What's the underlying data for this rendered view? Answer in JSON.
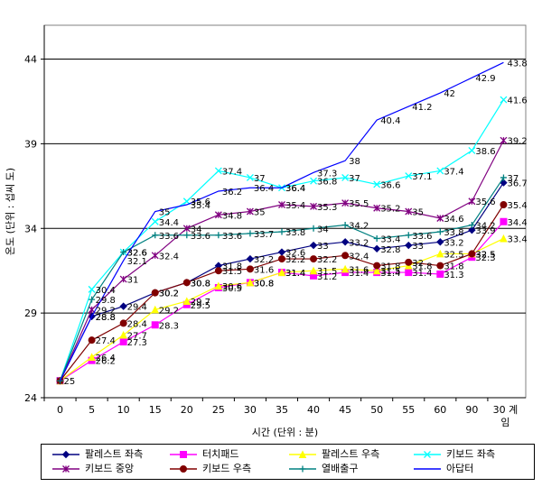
{
  "chart_data": {
    "type": "line",
    "title": "",
    "ylabel": "온도 (단위 : 섭씨 도)",
    "xlabel": "시간 (단위 : 분)",
    "categories": [
      "0",
      "5",
      "10",
      "15",
      "20",
      "25",
      "30",
      "35",
      "40",
      "45",
      "50",
      "55",
      "60",
      "90",
      "30 계임"
    ],
    "y_ticks": [
      "24",
      "29",
      "34",
      "39",
      "44"
    ],
    "ylim": [
      24,
      46
    ],
    "grid": "horizontal major lines",
    "legend_position": "bottom",
    "series": [
      {
        "name": "팔레스트 좌측",
        "color": "#000080",
        "marker": "diamond",
        "values": [
          25,
          28.8,
          29.4,
          30.2,
          30.8,
          31.8,
          32.2,
          32.6,
          33,
          33.2,
          32.8,
          33,
          33.2,
          33.9,
          36.7
        ]
      },
      {
        "name": "터치패드",
        "color": "#ff00ff",
        "marker": "square",
        "values": [
          25,
          26.2,
          27.3,
          28.3,
          29.5,
          30.5,
          30.8,
          31.4,
          31.2,
          31.4,
          31.4,
          31.4,
          31.3,
          32.3,
          34.4
        ]
      },
      {
        "name": "팔레스트 우측",
        "color": "#ffff00",
        "marker": "triangle",
        "values": [
          25,
          26.4,
          27.7,
          29.2,
          29.7,
          30.6,
          30.8,
          31.4,
          31.5,
          31.6,
          31.5,
          31.8,
          32.5,
          32.5,
          33.4
        ]
      },
      {
        "name": "키보드 좌측",
        "color": "#00ffff",
        "marker": "x",
        "values": [
          25,
          30.4,
          32.6,
          34.4,
          35.6,
          37.4,
          37,
          36.4,
          36.8,
          37,
          36.6,
          37.1,
          37.4,
          38.6,
          41.6
        ]
      },
      {
        "name": "키보드 중앙",
        "color": "#800080",
        "marker": "star",
        "values": [
          25,
          29.2,
          31,
          32.4,
          34,
          34.8,
          35,
          35.4,
          35.3,
          35.5,
          35.2,
          35,
          34.6,
          35.6,
          39.2
        ]
      },
      {
        "name": "키보드 우측",
        "color": "#800000",
        "marker": "circle",
        "values": [
          25,
          27.4,
          28.4,
          30.2,
          30.8,
          31.5,
          31.6,
          32.2,
          32.2,
          32.4,
          31.8,
          32,
          31.8,
          32.5,
          35.4
        ]
      },
      {
        "name": "열배출구",
        "color": "#008080",
        "marker": "plus",
        "values": [
          25,
          29.8,
          32.6,
          33.6,
          33.6,
          33.6,
          33.7,
          33.8,
          34,
          34.2,
          33.4,
          33.6,
          33.8,
          34.2,
          37
        ]
      },
      {
        "name": "아답터",
        "color": "#0000ff",
        "marker": "none",
        "values": [
          25,
          28.8,
          32.1,
          35,
          35.4,
          36.2,
          36.4,
          36.4,
          37.3,
          38,
          40.4,
          41.2,
          42,
          42.9,
          43.8
        ]
      }
    ],
    "value_labels": [
      [
        "25",
        "28.8",
        "29.4",
        "30.2",
        "30.8",
        "31.8",
        "32.2",
        "32.6",
        "33",
        "33.2",
        "32.8",
        "33",
        "33.2",
        "33.9",
        "36.7"
      ],
      [
        "",
        "26.2",
        "27.3",
        "28.3",
        "29.5",
        "30.5",
        "30.8",
        "31.4",
        "31.2",
        "31.4",
        "31.4",
        "31.4",
        "31.3",
        "32.3",
        "34.4"
      ],
      [
        "",
        "26.4",
        "27.7",
        "29.2",
        "29.7",
        "30.6",
        "30.8",
        "31.4",
        "31.5",
        "31.6",
        "31.5",
        "31.8",
        "32.5",
        "32.5",
        "33.4"
      ],
      [
        "",
        "30.4",
        "32.6",
        "34.4",
        "35.6",
        "37.4",
        "37",
        "36.4",
        "36.8",
        "37",
        "36.6",
        "37.1",
        "37.4",
        "38.6",
        "41.6"
      ],
      [
        "",
        "29.2",
        "31",
        "32.4",
        "34",
        "34.8",
        "35",
        "35.4",
        "35.3",
        "35.5",
        "35.2",
        "35",
        "34.6",
        "35.6",
        "39.2"
      ],
      [
        "",
        "27.4",
        "28.4",
        "30.2",
        "30.8",
        "31.5",
        "31.6",
        "32.2",
        "32.2",
        "32.4",
        "31.8",
        "32",
        "31.8",
        "32.5",
        "35.4"
      ],
      [
        "",
        "29.8",
        "32.6",
        "33.6",
        "33.6",
        "33.6",
        "33.7",
        "33.8",
        "34",
        "34.2",
        "33.4",
        "33.6",
        "33.8",
        "34.2",
        "37"
      ],
      [
        "",
        "28.8",
        "32.1",
        "35",
        "35.4",
        "36.2",
        "36.4",
        "36.4",
        "37.3",
        "38",
        "40.4",
        "41.2",
        "42",
        "42.9",
        "43.8"
      ]
    ]
  }
}
